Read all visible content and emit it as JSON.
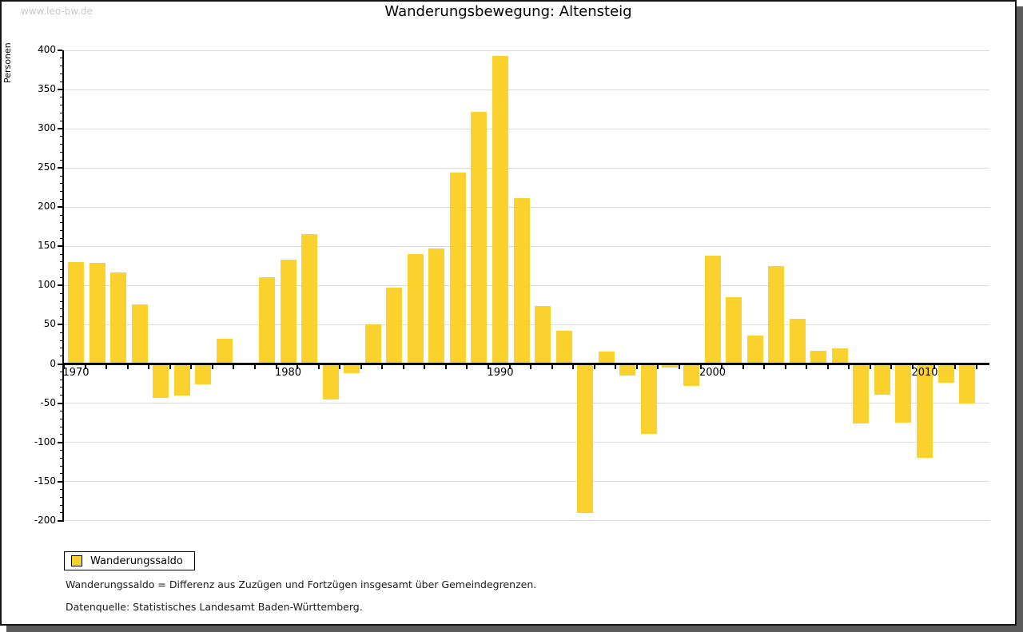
{
  "watermark": "www.leo-bw.de",
  "title": "Wanderungsbewegung: Altensteig",
  "legend": {
    "label": "Wanderungssaldo",
    "swatch_color": "#fbd12d"
  },
  "footnotes": [
    "Wanderungssaldo = Differenz aus Zuzügen und Fortzügen insgesamt über Gemeindegrenzen.",
    "Datenquelle: Statistisches Landesamt Baden-Württemberg."
  ],
  "colors": {
    "bar": "#fbd12d",
    "grid": "#dbdbdb",
    "axis": "#000000",
    "watermark": "#c9c9c9",
    "frame_shadow": "#5b5b5b"
  },
  "chart_data": {
    "type": "bar",
    "title": "Wanderungsbewegung: Altensteig",
    "xlabel": "",
    "ylabel": "Personen",
    "ylim": [
      -200,
      400
    ],
    "ytick_step": 50,
    "ytick_minor_step": 10,
    "grid": true,
    "legend_position": "bottom-left",
    "bar_color": "#fbd12d",
    "x": [
      1970,
      1971,
      1972,
      1973,
      1974,
      1975,
      1976,
      1977,
      1978,
      1979,
      1980,
      1981,
      1982,
      1983,
      1984,
      1985,
      1986,
      1987,
      1988,
      1989,
      1990,
      1991,
      1992,
      1993,
      1994,
      1995,
      1996,
      1997,
      1998,
      1999,
      2000,
      2001,
      2002,
      2003,
      2004,
      2005,
      2006,
      2007,
      2008,
      2009,
      2010,
      2011,
      2012
    ],
    "xticks_labeled": [
      1970,
      1980,
      1990,
      2000,
      2010
    ],
    "series": [
      {
        "name": "Wanderungssaldo",
        "values": [
          130,
          129,
          117,
          76,
          -43,
          -40,
          -26,
          32,
          2,
          111,
          133,
          166,
          -45,
          -12,
          50,
          97,
          140,
          147,
          244,
          322,
          393,
          211,
          74,
          42,
          -190,
          16,
          -15,
          -89,
          -5,
          -28,
          138,
          85,
          36,
          125,
          58,
          17,
          20,
          -76,
          -39,
          -75,
          -120,
          -24,
          -50
        ]
      }
    ]
  }
}
